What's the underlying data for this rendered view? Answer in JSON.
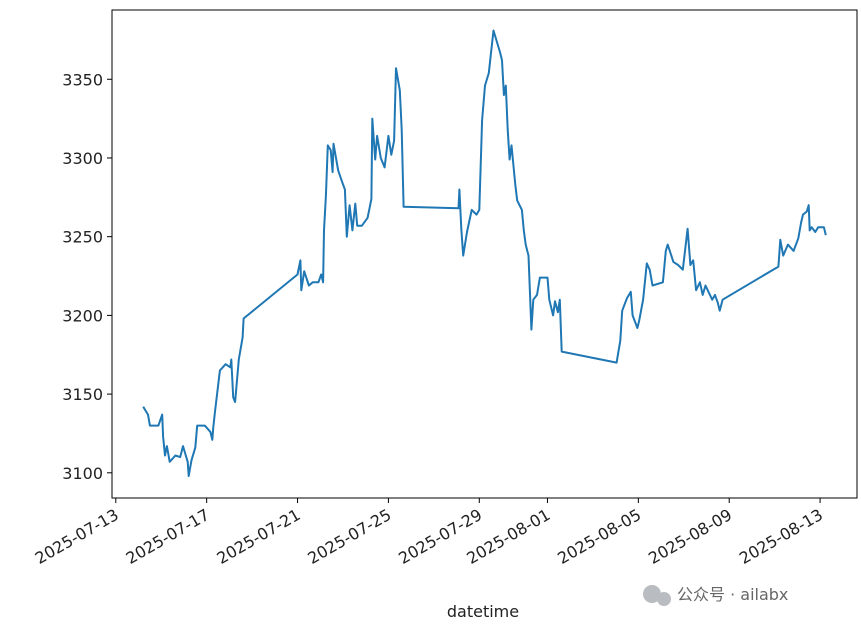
{
  "chart_data": {
    "type": "line",
    "xlabel": "datetime",
    "watermark": "公众号 · ailabx",
    "x": [
      "2025-07-14T05:00",
      "2025-07-14T10:00",
      "2025-07-14T12:00",
      "2025-07-14T21:00",
      "2025-07-15T01:00",
      "2025-07-15T02:00",
      "2025-07-15T04:00",
      "2025-07-15T06:00",
      "2025-07-15T09:00",
      "2025-07-15T15:00",
      "2025-07-15T20:00",
      "2025-07-15T23:00",
      "2025-07-16T04:00",
      "2025-07-16T05:00",
      "2025-07-16T08:00",
      "2025-07-16T12:00",
      "2025-07-16T14:00",
      "2025-07-16T22:00",
      "2025-07-17T04:00",
      "2025-07-17T06:00",
      "2025-07-17T07:00",
      "2025-07-17T09:00",
      "2025-07-17T14:00",
      "2025-07-17T20:00",
      "2025-07-18T01:00",
      "2025-07-18T02:00",
      "2025-07-18T04:00",
      "2025-07-18T06:00",
      "2025-07-18T10:00",
      "2025-07-18T14:00",
      "2025-07-18T15:00",
      "2025-07-21T00:00",
      "2025-07-21T03:00",
      "2025-07-21T04:00",
      "2025-07-21T07:00",
      "2025-07-21T12:00",
      "2025-07-21T16:00",
      "2025-07-21T22:00",
      "2025-07-22T01:00",
      "2025-07-22T03:00",
      "2025-07-22T04:00",
      "2025-07-22T06:00",
      "2025-07-22T08:00",
      "2025-07-22T11:00",
      "2025-07-22T13:00",
      "2025-07-22T14:00",
      "2025-07-22T19:00",
      "2025-07-22T23:00",
      "2025-07-23T02:00",
      "2025-07-23T04:00",
      "2025-07-23T07:00",
      "2025-07-23T10:00",
      "2025-07-23T13:00",
      "2025-07-23T15:00",
      "2025-07-23T20:00",
      "2025-07-24T02:00",
      "2025-07-24T06:00",
      "2025-07-24T07:00",
      "2025-07-24T10:00",
      "2025-07-24T12:00",
      "2025-07-24T16:00",
      "2025-07-24T20:00",
      "2025-07-25T00:00",
      "2025-07-25T03:00",
      "2025-07-25T06:00",
      "2025-07-25T08:00",
      "2025-07-25T12:00",
      "2025-07-25T14:00",
      "2025-07-25T16:00",
      "2025-07-28T02:00",
      "2025-07-28T03:00",
      "2025-07-28T05:00",
      "2025-07-28T07:00",
      "2025-07-28T11:00",
      "2025-07-28T16:00",
      "2025-07-28T21:00",
      "2025-07-29T00:00",
      "2025-07-29T03:00",
      "2025-07-29T06:00",
      "2025-07-29T10:00",
      "2025-07-29T12:00",
      "2025-07-29T15:00",
      "2025-07-29T18:00",
      "2025-07-29T22:00",
      "2025-07-30T00:00",
      "2025-07-30T02:00",
      "2025-07-30T04:00",
      "2025-07-30T06:00",
      "2025-07-30T08:00",
      "2025-07-30T10:00",
      "2025-07-30T14:00",
      "2025-07-30T16:00",
      "2025-07-30T21:00",
      "2025-07-30T23:00",
      "2025-07-31T01:00",
      "2025-07-31T04:00",
      "2025-07-31T07:00",
      "2025-07-31T09:00",
      "2025-07-31T13:00",
      "2025-07-31T16:00",
      "2025-08-01T00:00",
      "2025-08-01T02:00",
      "2025-08-01T06:00",
      "2025-08-01T08:00",
      "2025-08-01T11:00",
      "2025-08-01T13:00",
      "2025-08-01T15:00",
      "2025-08-04T01:00",
      "2025-08-04T05:00",
      "2025-08-04T07:00",
      "2025-08-04T12:00",
      "2025-08-04T16:00",
      "2025-08-04T18:00",
      "2025-08-04T23:00",
      "2025-08-05T01:00",
      "2025-08-05T05:00",
      "2025-08-05T09:00",
      "2025-08-05T12:00",
      "2025-08-05T15:00",
      "2025-08-06T02:00",
      "2025-08-06T05:00",
      "2025-08-06T07:00",
      "2025-08-06T13:00",
      "2025-08-06T18:00",
      "2025-08-06T23:00",
      "2025-08-07T04:00",
      "2025-08-07T07:00",
      "2025-08-07T10:00",
      "2025-08-07T13:00",
      "2025-08-07T17:00",
      "2025-08-07T20:00",
      "2025-08-07T23:00",
      "2025-08-08T06:00",
      "2025-08-08T09:00",
      "2025-08-08T12:00",
      "2025-08-08T14:00",
      "2025-08-08T17:00",
      "2025-08-11T04:00",
      "2025-08-11T06:00",
      "2025-08-11T09:00",
      "2025-08-11T14:00",
      "2025-08-11T20:00",
      "2025-08-12T01:00",
      "2025-08-12T04:00",
      "2025-08-12T06:00",
      "2025-08-12T10:00",
      "2025-08-12T12:00",
      "2025-08-12T13:00",
      "2025-08-12T15:00",
      "2025-08-12T19:00",
      "2025-08-12T22:00",
      "2025-08-13T04:00",
      "2025-08-13T06:00"
    ],
    "series": [
      {
        "color": "#1f77b4",
        "values": [
          3142,
          3137,
          3130,
          3130,
          3137,
          3123,
          3111,
          3117,
          3107,
          3111,
          3110,
          3117,
          3107,
          3098,
          3108,
          3116,
          3130,
          3130,
          3126,
          3121,
          3129,
          3140,
          3165,
          3169,
          3167,
          3172,
          3148,
          3145,
          3172,
          3186,
          3198,
          3226,
          3235,
          3216,
          3228,
          3219,
          3221,
          3221,
          3226,
          3221,
          3254,
          3276,
          3308,
          3305,
          3291,
          3309,
          3292,
          3285,
          3280,
          3250,
          3270,
          3254,
          3271,
          3257,
          3257,
          3262,
          3274,
          3325,
          3299,
          3314,
          3300,
          3294,
          3314,
          3302,
          3311,
          3357,
          3343,
          3318,
          3269,
          3268,
          3280,
          3255,
          3238,
          3253,
          3267,
          3264,
          3267,
          3324,
          3346,
          3354,
          3365,
          3381,
          3375,
          3367,
          3362,
          3340,
          3346,
          3318,
          3299,
          3308,
          3283,
          3273,
          3267,
          3254,
          3245,
          3238,
          3191,
          3210,
          3213,
          3224,
          3224,
          3210,
          3200,
          3209,
          3202,
          3210,
          3177,
          3170,
          3184,
          3203,
          3211,
          3215,
          3200,
          3192,
          3197,
          3210,
          3233,
          3229,
          3219,
          3221,
          3241,
          3245,
          3234,
          3232,
          3229,
          3255,
          3232,
          3235,
          3216,
          3221,
          3213,
          3219,
          3210,
          3213,
          3208,
          3203,
          3210,
          3231,
          3248,
          3238,
          3245,
          3241,
          3249,
          3259,
          3264,
          3266,
          3270,
          3254,
          3256,
          3253,
          3256,
          3256,
          3251
        ]
      }
    ],
    "xlim": [
      "2025-07-12T20:00",
      "2025-08-14T15:00"
    ],
    "xticks": [
      "2025-07-13",
      "2025-07-17",
      "2025-07-21",
      "2025-07-25",
      "2025-07-29",
      "2025-08-01",
      "2025-08-05",
      "2025-08-09",
      "2025-08-13"
    ],
    "ylim": [
      3084,
      3394
    ],
    "yticks": [
      3100,
      3150,
      3200,
      3250,
      3300,
      3350
    ]
  }
}
